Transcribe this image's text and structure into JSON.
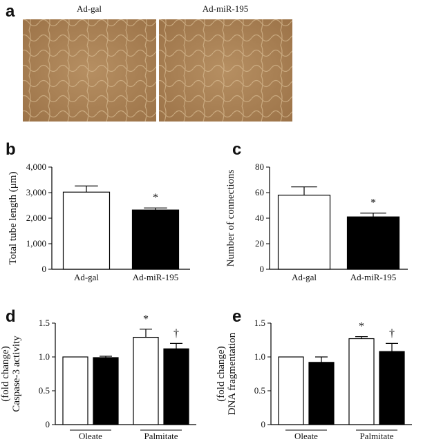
{
  "panel_a": {
    "letter": "a",
    "labels": [
      "Ad-gal",
      "Ad-miR-195"
    ]
  },
  "chart_data": [
    {
      "letter": "b",
      "type": "bar",
      "ylabel": [
        "Total tube length (μm)"
      ],
      "categories": [
        "Ad-gal",
        "Ad-miR-195"
      ],
      "series": [
        {
          "colors": [
            "#ffffff",
            "#000000"
          ],
          "values": [
            3020,
            2320
          ],
          "errors": [
            240,
            80
          ],
          "annotations": [
            null,
            "*"
          ]
        }
      ],
      "ylim": [
        0,
        4000
      ],
      "yticks": [
        0,
        {
          "value": 1000,
          "label": "1,000"
        },
        {
          "value": 2000,
          "label": "2,000"
        },
        {
          "value": 3000,
          "label": "3,000"
        },
        {
          "value": 4000,
          "label": "4,000"
        }
      ]
    },
    {
      "letter": "c",
      "type": "bar",
      "ylabel": [
        "Number of connections"
      ],
      "categories": [
        "Ad-gal",
        "Ad-miR-195"
      ],
      "series": [
        {
          "colors": [
            "#ffffff",
            "#000000"
          ],
          "values": [
            58,
            41
          ],
          "errors": [
            6.5,
            3
          ],
          "annotations": [
            null,
            "*"
          ]
        }
      ],
      "ylim": [
        0,
        80
      ],
      "yticks": [
        0,
        20,
        40,
        60,
        80
      ]
    },
    {
      "letter": "d",
      "type": "grouped_bar",
      "ylabel": [
        "Caspase-3 activity",
        "(fold change)"
      ],
      "categories": [
        "Oleate",
        "Palmitate"
      ],
      "series": [
        {
          "color": "#ffffff",
          "values": [
            1.0,
            1.29
          ],
          "errors": [
            0,
            0.12
          ],
          "annotations": [
            null,
            "*"
          ]
        },
        {
          "color": "#000000",
          "values": [
            0.99,
            1.12
          ],
          "errors": [
            0.02,
            0.08
          ],
          "annotations": [
            null,
            "†"
          ]
        }
      ],
      "ylim": [
        0,
        1.5
      ],
      "yticks": [
        0,
        0.5,
        {
          "value": 1.0,
          "label": "1.0"
        },
        1.5
      ]
    },
    {
      "letter": "e",
      "type": "grouped_bar",
      "ylabel": [
        "DNA fragmentation",
        "(fold change)"
      ],
      "categories": [
        "Oleate",
        "Palmitate"
      ],
      "series": [
        {
          "color": "#ffffff",
          "values": [
            1.0,
            1.27
          ],
          "errors": [
            0,
            0.03
          ],
          "annotations": [
            null,
            "*"
          ]
        },
        {
          "color": "#000000",
          "values": [
            0.92,
            1.08
          ],
          "errors": [
            0.08,
            0.12
          ],
          "annotations": [
            null,
            "†"
          ]
        }
      ],
      "ylim": [
        0,
        1.5
      ],
      "yticks": [
        0,
        0.5,
        {
          "value": 1.0,
          "label": "1.0"
        },
        1.5
      ]
    }
  ]
}
